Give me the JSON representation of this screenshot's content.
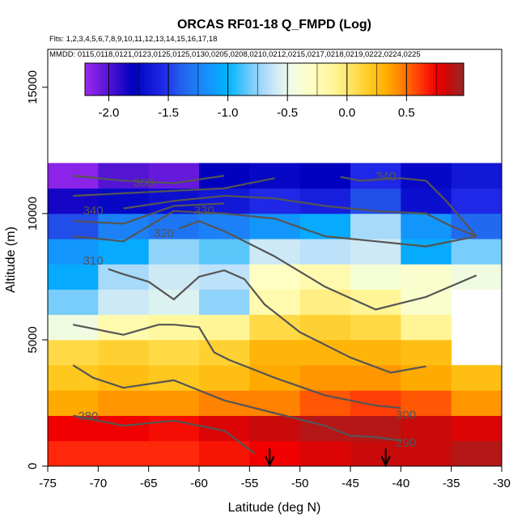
{
  "chart_data": {
    "type": "heatmap",
    "title": "ORCAS RF01-18 Q_FMPD (Log)",
    "flights_line": "Flts: 1,2,3,4,5,6,7,8,9,10,11,12,13,14,15,16,17,18",
    "dates_line": "MMDD: 0115,0118,0121,0123,0125,0125,0130,0205,0208,0210,0212,0215,0217,0218,0219,0222,0224,0225",
    "xlabel": "Latitude (deg N)",
    "ylabel": "Altitude (m)",
    "xlim": [
      -75,
      -30
    ],
    "ylim": [
      0,
      16500
    ],
    "x_ticks": [
      -75,
      -70,
      -65,
      -60,
      -55,
      -50,
      -45,
      -40,
      -35,
      -30
    ],
    "y_ticks": [
      0,
      5000,
      10000,
      15000
    ],
    "colorbar": {
      "range": [
        -2.2,
        0.98
      ],
      "ticks": [
        -2.0,
        -1.5,
        -1.0,
        -0.5,
        0.0,
        0.5
      ],
      "tick_labels": [
        "-2.0",
        "-1.5",
        "-1.0",
        "-0.5",
        "0.0",
        "0.5"
      ]
    },
    "cell_width_deg": 5,
    "cell_height_m": 1000,
    "grid": {
      "x_starts": [
        -75,
        -70,
        -65,
        -60,
        -55,
        -50,
        -45,
        -40,
        -35
      ],
      "y_starts": [
        0,
        1000,
        2000,
        3000,
        4000,
        5000,
        6000,
        7000,
        8000,
        9000,
        10000,
        11000
      ],
      "values": [
        [
          0.65,
          0.65,
          0.65,
          0.7,
          0.75,
          0.8,
          0.85,
          0.85,
          0.9
        ],
        [
          0.75,
          0.75,
          0.72,
          0.8,
          0.85,
          0.9,
          0.9,
          0.85,
          0.8
        ],
        [
          0.35,
          0.4,
          0.4,
          0.45,
          0.45,
          0.55,
          0.6,
          0.55,
          0.4
        ],
        [
          0.2,
          0.25,
          0.2,
          0.25,
          0.35,
          0.4,
          0.4,
          0.35,
          0.25
        ],
        [
          0.1,
          0.15,
          0.1,
          0.15,
          0.3,
          0.3,
          0.3,
          0.25,
          null
        ],
        [
          -0.45,
          -0.2,
          -0.15,
          -0.1,
          0.1,
          0.15,
          0.1,
          -0.1,
          null
        ],
        [
          -0.8,
          -0.6,
          -0.55,
          -0.75,
          -0.2,
          -0.05,
          -0.1,
          -0.35,
          null
        ],
        [
          -1.05,
          -0.7,
          -0.6,
          -0.65,
          -0.3,
          -0.2,
          -0.4,
          -0.35,
          -0.45
        ],
        [
          -1.15,
          -1.05,
          -0.75,
          -0.85,
          -0.6,
          -0.65,
          -0.6,
          -1.05,
          -0.8
        ],
        [
          -1.45,
          -1.25,
          -1.3,
          -1.25,
          -1.15,
          -1.05,
          -0.7,
          -1.15,
          -1.35
        ],
        [
          -1.85,
          -1.75,
          -1.7,
          -1.65,
          -1.55,
          -1.6,
          -1.45,
          -1.7,
          -1.55
        ],
        [
          -2.15,
          -2.0,
          -2.05,
          -1.8,
          -1.75,
          -1.8,
          -1.55,
          -1.75,
          -1.65
        ]
      ]
    },
    "contours": [
      {
        "label": "280",
        "label_lat": -71,
        "label_alt": 1950,
        "points": [
          [
            -72.5,
            2000
          ],
          [
            -67.5,
            1600
          ],
          [
            -62.5,
            1800
          ],
          [
            -57.5,
            1400
          ],
          [
            -54.5,
            500
          ]
        ]
      },
      {
        "label": "290",
        "label_lat": -39.5,
        "label_alt": 900,
        "points": [
          [
            -72.5,
            4000
          ],
          [
            -70.5,
            3500
          ],
          [
            -67.5,
            3100
          ],
          [
            -62.5,
            3400
          ],
          [
            -57.5,
            2600
          ],
          [
            -52.5,
            2100
          ],
          [
            -47.5,
            1600
          ],
          [
            -45,
            1200
          ],
          [
            -42.5,
            1150
          ],
          [
            -40,
            1000
          ]
        ]
      },
      {
        "label": "300",
        "label_lat": -39.5,
        "label_alt": 2000,
        "points": [
          [
            -72.5,
            5600
          ],
          [
            -67.5,
            5200
          ],
          [
            -64,
            5600
          ],
          [
            -62.5,
            5600
          ],
          [
            -60,
            5500
          ],
          [
            -58.5,
            4500
          ],
          [
            -57,
            4200
          ],
          [
            -52.5,
            3500
          ],
          [
            -47.5,
            2800
          ],
          [
            -42.5,
            2400
          ],
          [
            -40,
            2300
          ]
        ]
      },
      {
        "label": "310",
        "label_lat": -70.5,
        "label_alt": 8100,
        "points": [
          [
            -69,
            7800
          ],
          [
            -67.5,
            7600
          ],
          [
            -65,
            7300
          ],
          [
            -62.5,
            6600
          ],
          [
            -60,
            7500
          ],
          [
            -57.5,
            7750
          ],
          [
            -55.5,
            7400
          ],
          [
            -53.5,
            6400
          ],
          [
            -50,
            5300
          ],
          [
            -45,
            4300
          ],
          [
            -41,
            3700
          ],
          [
            -37.5,
            3950
          ]
        ]
      },
      {
        "label": "320",
        "label_lat": -63.5,
        "label_alt": 9200,
        "points": [
          [
            -62,
            9400
          ],
          [
            -60,
            9700
          ],
          [
            -57.5,
            9300
          ],
          [
            -52.5,
            8300
          ],
          [
            -47.5,
            7100
          ],
          [
            -42.5,
            6200
          ],
          [
            -37.5,
            6700
          ],
          [
            -32.5,
            7550
          ]
        ]
      },
      {
        "label": "330",
        "label_lat": -59.5,
        "label_alt": 10100,
        "points": [
          [
            -72.5,
            9100
          ],
          [
            -67.5,
            8900
          ],
          [
            -62.5,
            10100
          ],
          [
            -57.5,
            10000
          ],
          [
            -52.5,
            9800
          ],
          [
            -47.5,
            9100
          ],
          [
            -42.5,
            8900
          ],
          [
            -37.5,
            8700
          ],
          [
            -32.5,
            9100
          ]
        ]
      },
      {
        "label": "340",
        "label_lat": -70.5,
        "label_alt": 10100,
        "points": [
          [
            -67.5,
            10200
          ],
          [
            -62.5,
            10500
          ],
          [
            -57.5,
            10700
          ],
          [
            -52.5,
            10600
          ],
          [
            -47.5,
            10300
          ],
          [
            -42.5,
            10100
          ],
          [
            -37.5,
            10000
          ],
          [
            -35,
            9500
          ],
          [
            -32.5,
            9100
          ]
        ]
      },
      {
        "label": "340",
        "label_lat": -41.5,
        "label_alt": 11450,
        "points": [
          [
            -46,
            11450
          ],
          [
            -44,
            11300
          ],
          [
            -40,
            11400
          ],
          [
            -37.5,
            11300
          ],
          [
            -35.5,
            10500
          ],
          [
            -34,
            9800
          ],
          [
            -32.5,
            9100
          ]
        ]
      },
      {
        "label": "360",
        "label_lat": -65.5,
        "label_alt": 11200,
        "points": [
          [
            -72.5,
            11500
          ],
          [
            -67.5,
            11300
          ],
          [
            -62.5,
            11200
          ],
          [
            -57.5,
            11500
          ]
        ]
      },
      {
        "label": "",
        "label_lat": -72.5,
        "label_alt": 0,
        "points": [
          [
            -72.5,
            10700
          ],
          [
            -67.5,
            10800
          ],
          [
            -62.5,
            10900
          ],
          [
            -57.5,
            11000
          ],
          [
            -52.5,
            11400
          ]
        ]
      },
      {
        "label": "",
        "label_lat": -72.5,
        "label_alt": 0,
        "points": [
          [
            -72.5,
            9700
          ],
          [
            -67.5,
            9600
          ],
          [
            -62.5,
            10300
          ],
          [
            -57.5,
            10400
          ]
        ]
      }
    ],
    "arrows": [
      {
        "lat": -53,
        "alt_top": 700,
        "alt_bottom": 0
      },
      {
        "lat": -41.5,
        "alt_top": 700,
        "alt_bottom": 0
      }
    ]
  }
}
